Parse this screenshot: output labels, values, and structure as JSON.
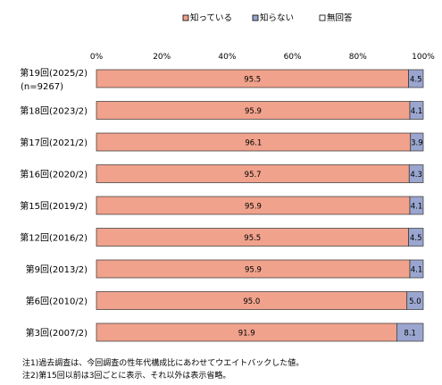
{
  "chart_data": {
    "type": "bar",
    "orientation": "horizontal",
    "stacked": true,
    "xlim": [
      0,
      100
    ],
    "x_ticks": [
      "0%",
      "20%",
      "40%",
      "60%",
      "80%",
      "100%"
    ],
    "categories": [
      [
        "第19回(2025/2)",
        "(n=9267)"
      ],
      [
        "第18回(2023/2)"
      ],
      [
        "第17回(2021/2)"
      ],
      [
        "第16回(2020/2)"
      ],
      [
        "第15回(2019/2)"
      ],
      [
        "第12回(2016/2)"
      ],
      [
        "第9回(2013/2)"
      ],
      [
        "第6回(2010/2)"
      ],
      [
        "第3回(2007/2)"
      ]
    ],
    "series": [
      {
        "name": "知っている",
        "color": "#f0a28c",
        "values": [
          95.5,
          95.9,
          96.1,
          95.7,
          95.9,
          95.5,
          95.9,
          95.0,
          91.9
        ],
        "labels": [
          "95.5",
          "95.9",
          "96.1",
          "95.7",
          "95.9",
          "95.5",
          "95.9",
          "95.0",
          "91.9"
        ]
      },
      {
        "name": "知らない",
        "color": "#9aa6cf",
        "values": [
          4.5,
          4.1,
          3.9,
          4.3,
          4.1,
          4.5,
          4.1,
          5.0,
          8.1
        ],
        "labels": [
          "4.5",
          "4.1",
          "3.9",
          "4.3",
          "4.1",
          "4.5",
          "4.1",
          "5.0",
          "8.1"
        ]
      },
      {
        "name": "無回答",
        "color": "#ffffff",
        "values": [
          0,
          0,
          0,
          0,
          0,
          0,
          0,
          0,
          0
        ],
        "labels": []
      }
    ],
    "legend_position": "top",
    "grid": false
  },
  "notes": [
    "注1)過去調査は、今回調査の性年代構成比にあわせてウエイトバックした値。",
    "注2)第15回以前は3回ごとに表示、それ以外は表示省略。"
  ]
}
